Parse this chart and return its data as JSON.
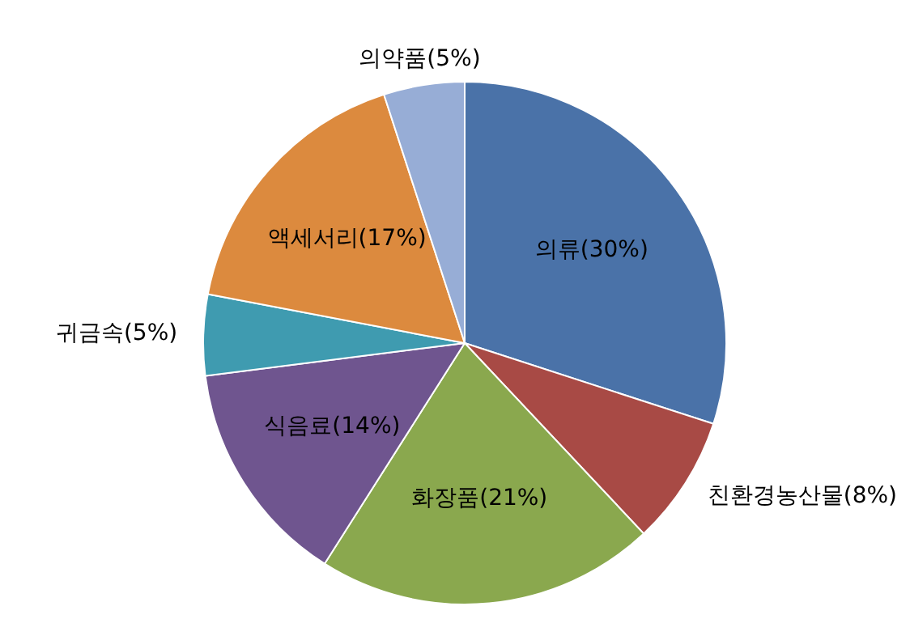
{
  "chart_data": {
    "type": "pie",
    "categories": [
      "의류(30%)",
      "친환경농산물(8%)",
      "화장품(21%)",
      "식음료(14%)",
      "귀금속(5%)",
      "액세서리(17%)",
      "의약품(5%)"
    ],
    "values": [
      30,
      8,
      21,
      14,
      5,
      17,
      5
    ],
    "colors": [
      "#4a72a8",
      "#a84a45",
      "#8aa84e",
      "#6f558f",
      "#3f9bb0",
      "#dc8a3e",
      "#97add6"
    ],
    "legend": false
  }
}
